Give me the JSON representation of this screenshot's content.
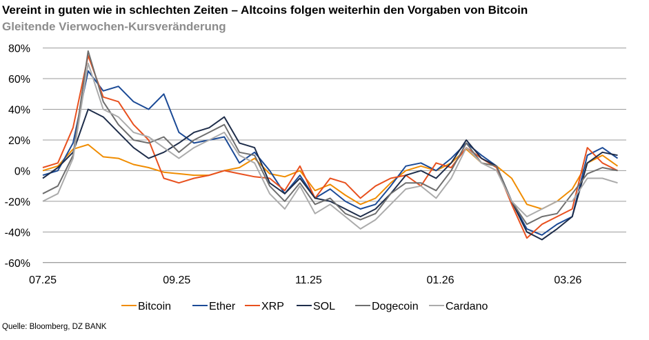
{
  "title": "Vereint in guten wie in schlechten Zeiten – Altcoins folgen weiterhin den Vorgaben von Bitcoin",
  "subtitle": "Gleitende Vierwochen-Kursveränderung",
  "source": "Quelle: Bloomberg, DZ BANK",
  "chart_data": {
    "type": "line",
    "title": "Vereint in guten wie in schlechten Zeiten – Altcoins folgen weiterhin den Vorgaben von Bitcoin",
    "subtitle": "Gleitende Vierwochen-Kursveränderung",
    "xlabel": "",
    "ylabel": "",
    "xlim": [
      "2025-07-01",
      "2026-03-28"
    ],
    "ylim": [
      -60,
      80
    ],
    "y_ticks": [
      80,
      60,
      40,
      20,
      0,
      -20,
      -40,
      -60
    ],
    "y_tick_labels": [
      "80%",
      "60%",
      "40%",
      "20%",
      "0%",
      "-20%",
      "-40%",
      "-60%"
    ],
    "x_ticks": [
      "2025-07-01",
      "2025-09-01",
      "2025-11-01",
      "2026-01-01",
      "2026-03-01"
    ],
    "x_tick_labels": [
      "07.25",
      "09.25",
      "11.25",
      "01.26",
      "03.26"
    ],
    "grid": "horizontal",
    "legend_position": "bottom",
    "x": [
      "2025-07-01",
      "2025-07-08",
      "2025-07-15",
      "2025-07-22",
      "2025-07-29",
      "2025-08-05",
      "2025-08-12",
      "2025-08-19",
      "2025-08-26",
      "2025-09-02",
      "2025-09-09",
      "2025-09-16",
      "2025-09-23",
      "2025-09-30",
      "2025-10-07",
      "2025-10-14",
      "2025-10-21",
      "2025-10-28",
      "2025-11-04",
      "2025-11-11",
      "2025-11-18",
      "2025-11-25",
      "2025-12-02",
      "2025-12-09",
      "2025-12-16",
      "2025-12-23",
      "2025-12-30",
      "2026-01-06",
      "2026-01-13",
      "2026-01-20",
      "2026-01-27",
      "2026-02-03",
      "2026-02-10",
      "2026-02-17",
      "2026-02-24",
      "2026-03-03",
      "2026-03-10",
      "2026-03-17",
      "2026-03-24"
    ],
    "series": [
      {
        "name": "Bitcoin",
        "color": "#F08C00",
        "values": [
          0,
          3,
          14,
          17,
          9,
          8,
          4,
          2,
          -1,
          -2,
          -3,
          -3,
          0,
          2,
          8,
          -2,
          -4,
          0,
          -13,
          -9,
          -16,
          -22,
          -18,
          -8,
          0,
          3,
          0,
          5,
          14,
          5,
          3,
          -5,
          -22,
          -25,
          -20,
          -12,
          5,
          10,
          3
        ]
      },
      {
        "name": "Ether",
        "color": "#1B4A96",
        "values": [
          -3,
          0,
          18,
          65,
          52,
          55,
          45,
          40,
          50,
          25,
          18,
          20,
          22,
          5,
          12,
          0,
          -15,
          -3,
          -18,
          -12,
          -20,
          -25,
          -22,
          -10,
          3,
          5,
          0,
          8,
          18,
          10,
          3,
          -20,
          -38,
          -42,
          -35,
          -30,
          10,
          15,
          8
        ]
      },
      {
        "name": "XRP",
        "color": "#E8501E",
        "values": [
          2,
          5,
          28,
          75,
          48,
          45,
          30,
          20,
          -5,
          -8,
          -5,
          -3,
          0,
          -2,
          -4,
          -5,
          -13,
          3,
          -18,
          -5,
          -8,
          -18,
          -10,
          -5,
          -3,
          -10,
          5,
          2,
          15,
          8,
          2,
          -22,
          -44,
          -35,
          -30,
          -25,
          15,
          5,
          0
        ]
      },
      {
        "name": "SOL",
        "color": "#1E2D4A",
        "values": [
          -5,
          2,
          12,
          40,
          35,
          25,
          15,
          8,
          12,
          18,
          25,
          28,
          35,
          18,
          15,
          -8,
          -15,
          -5,
          -18,
          -20,
          -25,
          -30,
          -25,
          -15,
          -3,
          0,
          -5,
          5,
          20,
          8,
          3,
          -20,
          -40,
          -45,
          -38,
          -30,
          5,
          12,
          10
        ]
      },
      {
        "name": "Dogecoin",
        "color": "#6E6E6E",
        "values": [
          -15,
          -10,
          10,
          78,
          45,
          30,
          20,
          18,
          22,
          12,
          20,
          25,
          30,
          12,
          10,
          -10,
          -20,
          -8,
          -22,
          -18,
          -28,
          -32,
          -28,
          -15,
          -8,
          -8,
          -13,
          0,
          18,
          5,
          3,
          -20,
          -35,
          -30,
          -28,
          -15,
          -2,
          2,
          0
        ]
      },
      {
        "name": "Cardano",
        "color": "#ABABAB",
        "values": [
          -20,
          -15,
          8,
          70,
          40,
          35,
          25,
          22,
          15,
          8,
          15,
          20,
          25,
          10,
          5,
          -15,
          -25,
          -10,
          -28,
          -22,
          -30,
          -38,
          -32,
          -22,
          -12,
          -10,
          -18,
          -5,
          15,
          5,
          0,
          -20,
          -30,
          -25,
          -20,
          -20,
          -5,
          -5,
          -8
        ]
      }
    ]
  }
}
